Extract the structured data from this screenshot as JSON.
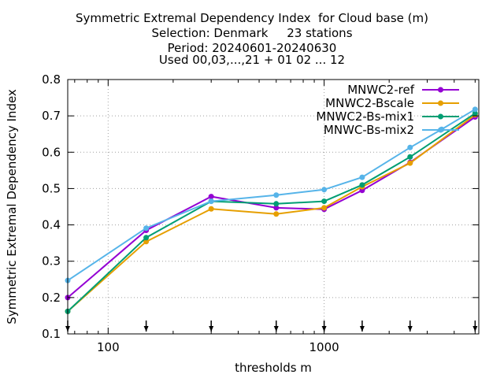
{
  "chart_data": {
    "type": "line",
    "title_lines": [
      "Symmetric Extremal Dependency Index  for Cloud base (m)",
      "Selection: Denmark     23 stations",
      "Period: 20240601-20240630",
      "Used 00,03,...,21 + 01 02 ... 12"
    ],
    "xlabel": "thresholds m",
    "ylabel": "Symmetric Extremal Dependency Index",
    "x_scale": "log",
    "xlim": [
      65,
      5200
    ],
    "ylim": [
      0.1,
      0.8
    ],
    "x_ticks": [
      100,
      1000
    ],
    "x_tick_labels": [
      "100",
      "1000"
    ],
    "y_ticks": [
      0.1,
      0.2,
      0.3,
      0.4,
      0.5,
      0.6,
      0.7,
      0.8
    ],
    "y_tick_labels": [
      "0.1",
      "0.2",
      "0.3",
      "0.4",
      "0.5",
      "0.6",
      "0.7",
      "0.8"
    ],
    "grid": true,
    "legend_position": "top-right",
    "threshold_markers": [
      65,
      150,
      300,
      600,
      1000,
      1500,
      2500,
      5000
    ],
    "series": [
      {
        "name": "MNWC2-ref",
        "color": "#9400d3",
        "x": [
          65,
          150,
          300,
          600,
          1000,
          1500,
          2500,
          5000
        ],
        "values": [
          0.2,
          0.385,
          0.478,
          0.447,
          0.443,
          0.495,
          0.572,
          0.697
        ]
      },
      {
        "name": "MNWC2-Bscale",
        "color": "#e69f00",
        "x": [
          65,
          150,
          300,
          600,
          1000,
          1500,
          2500,
          5000
        ],
        "values": [
          0.162,
          0.354,
          0.444,
          0.43,
          0.447,
          0.505,
          0.57,
          0.703
        ]
      },
      {
        "name": "MNWC2-Bs-mix1",
        "color": "#009e73",
        "x": [
          65,
          150,
          300,
          600,
          1000,
          1500,
          2500,
          5000
        ],
        "values": [
          0.162,
          0.365,
          0.465,
          0.458,
          0.465,
          0.51,
          0.587,
          0.707
        ]
      },
      {
        "name": "MNWC-Bs-mix2",
        "color": "#56b4e9",
        "x": [
          65,
          150,
          300,
          600,
          1000,
          1500,
          2500,
          3500,
          5000
        ],
        "values": [
          0.247,
          0.391,
          0.465,
          0.482,
          0.497,
          0.531,
          0.613,
          0.663,
          0.718
        ]
      }
    ]
  }
}
